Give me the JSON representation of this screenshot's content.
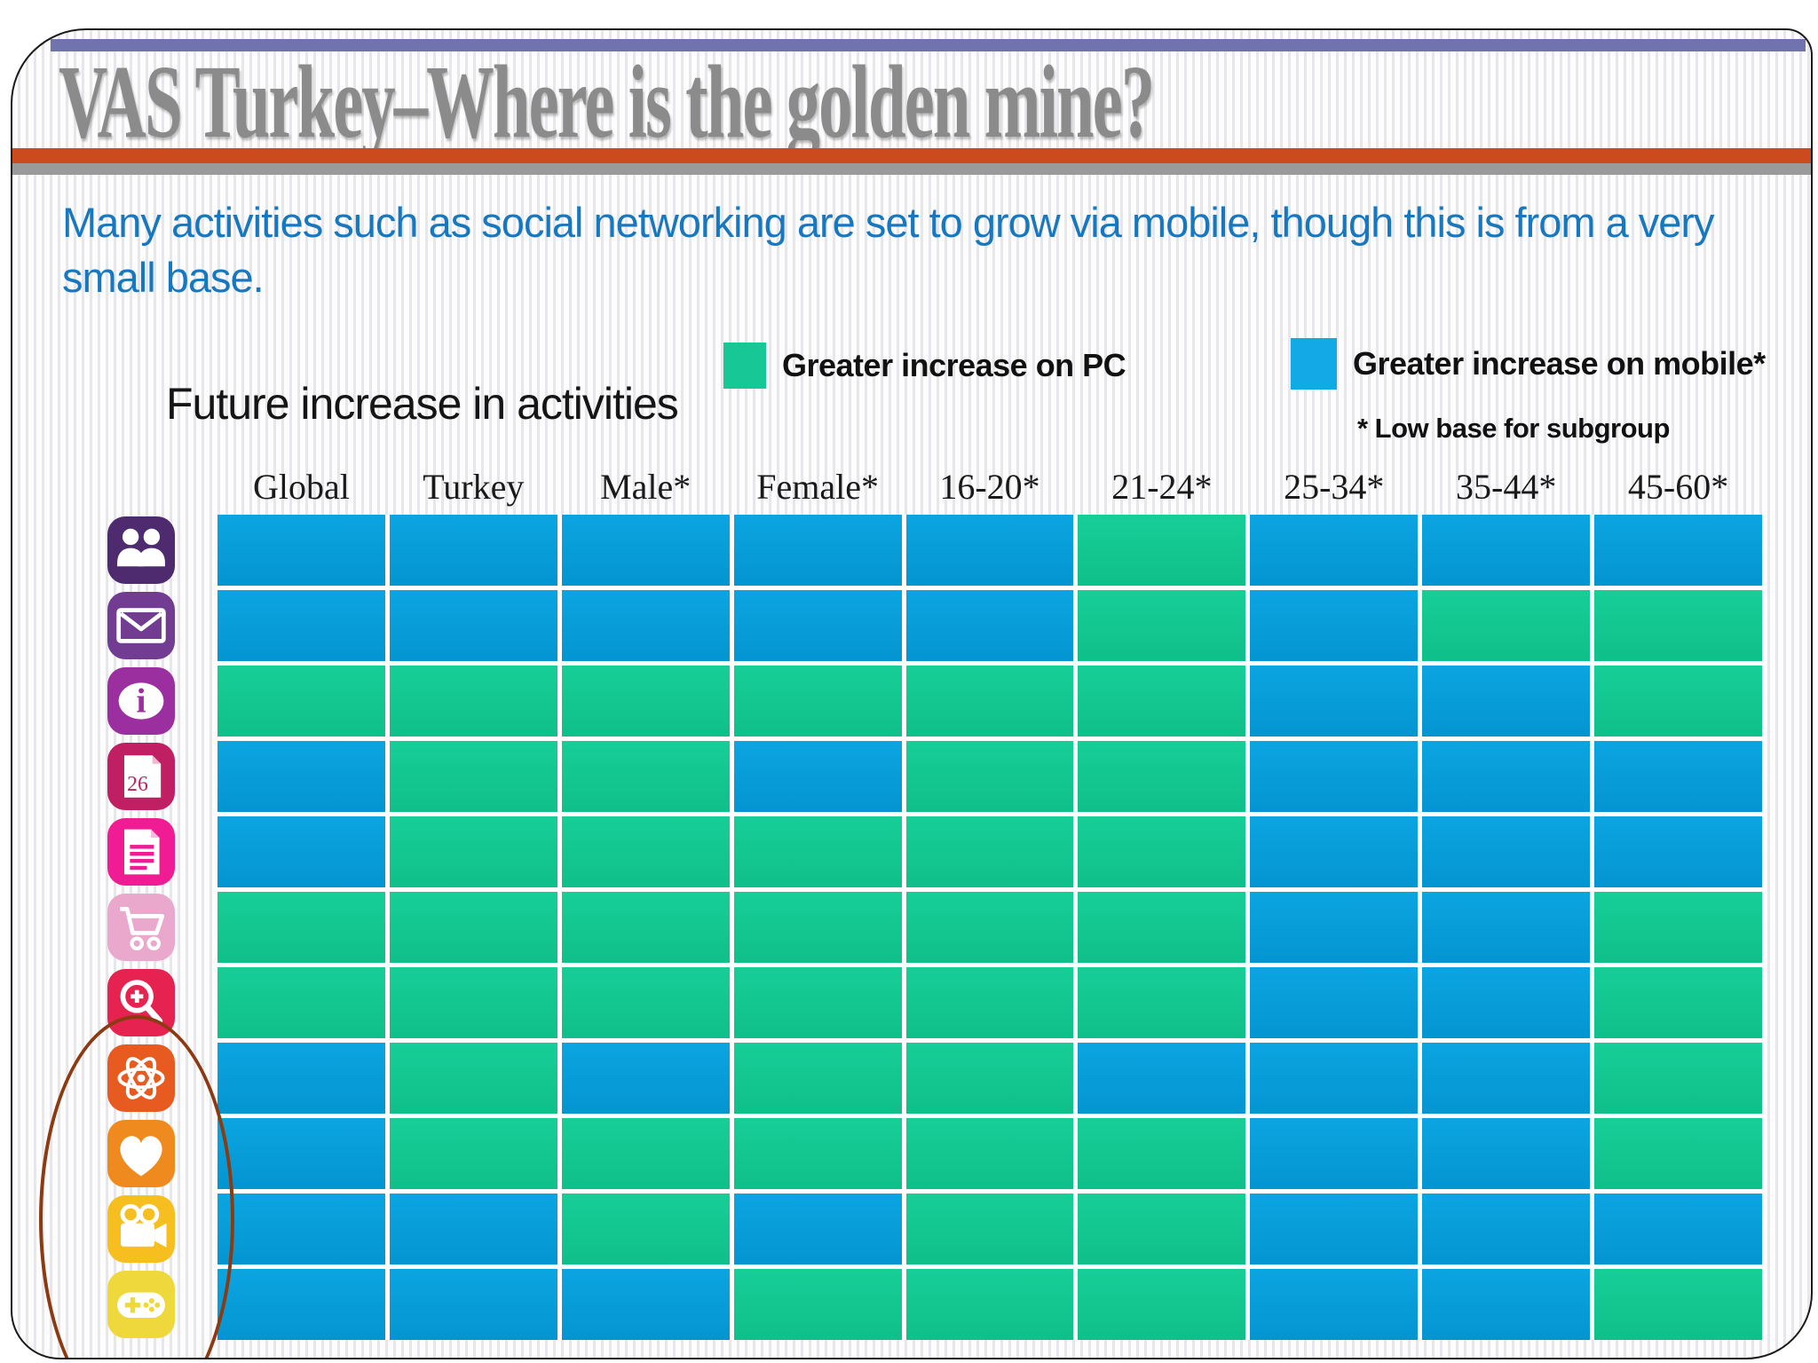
{
  "slide": {
    "title": "VAS Turkey–Where is the golden mine?",
    "subtitle": "Many activities such as social networking are set to grow via mobile, though this is from a very small base.",
    "accent_colors": {
      "top_bar": "#7173AE",
      "red_bar": "#CB4A1E",
      "gray_bar": "#9A9A9A",
      "title_gray": "#8B8B8B",
      "subtitle_blue": "#1878BF"
    }
  },
  "legend": {
    "pc_label": "Greater increase on PC",
    "mobile_label": "Greater increase on mobile*",
    "footnote": "* Low base for subgroup",
    "pc_color": "#15C993",
    "mobile_color": "#12A9E6"
  },
  "chart_data": {
    "type": "heatmap",
    "title": "Future increase in activities",
    "legend_position": "top-right",
    "value_colors": {
      "pc": "#12C78F",
      "mobile": "#089EDB"
    },
    "value_meaning": {
      "pc": "Greater increase on PC",
      "mobile": "Greater increase on mobile (low base for subgroup)"
    },
    "columns": [
      "Global",
      "Turkey",
      "Male*",
      "Female*",
      "16-20*",
      "21-24*",
      "25-34*",
      "35-44*",
      "45-60*"
    ],
    "rows": [
      {
        "activity": "social-networking",
        "icon": "people-icon",
        "icon_color": "#4E2A6F",
        "values": [
          "mobile",
          "mobile",
          "mobile",
          "mobile",
          "mobile",
          "pc",
          "mobile",
          "mobile",
          "mobile"
        ]
      },
      {
        "activity": "email",
        "icon": "envelope-icon",
        "icon_color": "#713C92",
        "values": [
          "mobile",
          "mobile",
          "mobile",
          "mobile",
          "mobile",
          "pc",
          "mobile",
          "pc",
          "pc"
        ]
      },
      {
        "activity": "information",
        "icon": "info-icon",
        "icon_color": "#9C2FA0",
        "values": [
          "pc",
          "pc",
          "pc",
          "pc",
          "pc",
          "pc",
          "mobile",
          "mobile",
          "pc"
        ]
      },
      {
        "activity": "calendar",
        "icon": "calendar-icon",
        "icon_color": "#C02063",
        "values": [
          "mobile",
          "pc",
          "pc",
          "mobile",
          "pc",
          "pc",
          "mobile",
          "mobile",
          "mobile"
        ]
      },
      {
        "activity": "news",
        "icon": "document-icon",
        "icon_color": "#F01C93",
        "values": [
          "mobile",
          "pc",
          "pc",
          "pc",
          "pc",
          "pc",
          "mobile",
          "mobile",
          "mobile"
        ]
      },
      {
        "activity": "shopping",
        "icon": "shopping-cart-icon",
        "icon_color": "#E9A8CC",
        "values": [
          "pc",
          "pc",
          "pc",
          "pc",
          "pc",
          "pc",
          "mobile",
          "mobile",
          "pc"
        ]
      },
      {
        "activity": "search",
        "icon": "magnifier-plus-icon",
        "icon_color": "#E62350",
        "values": [
          "pc",
          "pc",
          "pc",
          "pc",
          "pc",
          "pc",
          "mobile",
          "mobile",
          "pc"
        ]
      },
      {
        "activity": "science",
        "icon": "atom-icon",
        "icon_color": "#E75B21",
        "values": [
          "mobile",
          "pc",
          "mobile",
          "pc",
          "pc",
          "mobile",
          "mobile",
          "mobile",
          "pc"
        ]
      },
      {
        "activity": "health",
        "icon": "heart-icon",
        "icon_color": "#EF8A1F",
        "values": [
          "mobile",
          "pc",
          "pc",
          "pc",
          "pc",
          "pc",
          "mobile",
          "mobile",
          "pc"
        ]
      },
      {
        "activity": "video",
        "icon": "video-camera-icon",
        "icon_color": "#F6BE1F",
        "values": [
          "mobile",
          "mobile",
          "pc",
          "mobile",
          "pc",
          "pc",
          "mobile",
          "mobile",
          "mobile"
        ]
      },
      {
        "activity": "games",
        "icon": "game-controller-icon",
        "icon_color": "#EFD83B",
        "values": [
          "mobile",
          "mobile",
          "mobile",
          "pc",
          "pc",
          "pc",
          "mobile",
          "mobile",
          "pc"
        ]
      }
    ],
    "annotation": "Dark red ellipse drawn around the bottom four activity icons (science, health, video, games)"
  }
}
